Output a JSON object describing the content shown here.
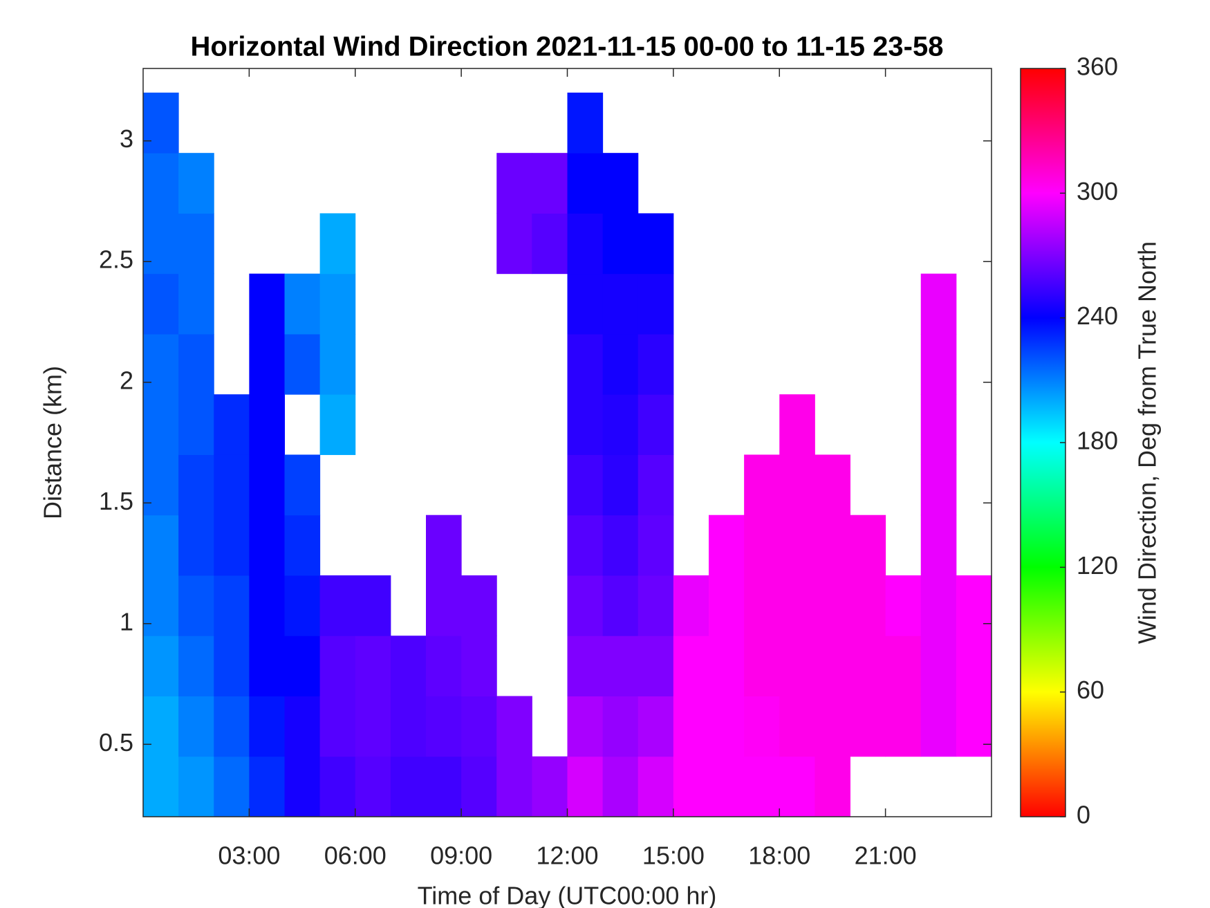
{
  "chart_data": {
    "type": "heatmap",
    "title": "Horizontal Wind Direction 2021-11-15 00-00 to 11-15 23-58",
    "xlabel": "Time of Day (UTC00:00 hr)",
    "ylabel": "Distance (km)",
    "colorbar_label": "Wind Direction, Deg from True North",
    "colormap": "hsv",
    "x": [
      0.5,
      1.5,
      2.5,
      3.5,
      4.5,
      5.5,
      6.5,
      7.5,
      8.5,
      9.5,
      10.5,
      11.5,
      12.5,
      13.5,
      14.5,
      15.5,
      16.5,
      17.5,
      18.5,
      19.5,
      20.5,
      21.5,
      22.5,
      23.5
    ],
    "y": [
      0.325,
      0.575,
      0.825,
      1.075,
      1.325,
      1.575,
      1.825,
      2.075,
      2.325,
      2.575,
      2.825,
      3.075
    ],
    "values": [
      [
        200,
        200,
        205,
        210,
        210,
        215,
        215,
        215,
        220,
        215,
        215,
        220
      ],
      [
        205,
        210,
        215,
        220,
        225,
        225,
        220,
        220,
        215,
        215,
        210,
        null
      ],
      [
        215,
        220,
        225,
        225,
        230,
        230,
        230,
        null,
        null,
        null,
        null,
        null
      ],
      [
        230,
        235,
        240,
        240,
        240,
        240,
        240,
        240,
        240,
        null,
        null,
        null
      ],
      [
        245,
        245,
        240,
        235,
        230,
        225,
        null,
        220,
        210,
        null,
        null,
        null
      ],
      [
        255,
        260,
        260,
        255,
        null,
        null,
        200,
        205,
        205,
        200,
        null,
        null
      ],
      [
        260,
        262,
        262,
        255,
        null,
        null,
        null,
        null,
        null,
        null,
        null,
        null
      ],
      [
        255,
        258,
        258,
        null,
        null,
        null,
        null,
        null,
        null,
        null,
        null,
        null
      ],
      [
        255,
        260,
        262,
        265,
        265,
        null,
        null,
        null,
        null,
        null,
        null,
        null
      ],
      [
        260,
        262,
        265,
        265,
        null,
        null,
        null,
        null,
        null,
        null,
        null,
        null
      ],
      [
        270,
        270,
        null,
        null,
        null,
        null,
        null,
        null,
        null,
        265,
        265,
        null
      ],
      [
        275,
        null,
        null,
        null,
        null,
        null,
        null,
        null,
        null,
        260,
        265,
        null
      ],
      [
        290,
        280,
        270,
        265,
        260,
        255,
        250,
        250,
        245,
        245,
        240,
        235
      ],
      [
        280,
        275,
        270,
        260,
        255,
        250,
        248,
        245,
        245,
        240,
        240,
        null
      ],
      [
        290,
        280,
        270,
        265,
        262,
        260,
        255,
        250,
        245,
        240,
        null,
        null
      ],
      [
        300,
        300,
        300,
        295,
        null,
        null,
        null,
        null,
        null,
        null,
        null,
        null
      ],
      [
        300,
        300,
        300,
        300,
        300,
        null,
        null,
        null,
        null,
        null,
        null,
        null
      ],
      [
        300,
        302,
        305,
        305,
        305,
        305,
        null,
        null,
        null,
        null,
        null,
        null
      ],
      [
        300,
        305,
        305,
        305,
        305,
        305,
        305,
        null,
        null,
        null,
        null,
        null
      ],
      [
        305,
        305,
        305,
        305,
        305,
        305,
        null,
        null,
        null,
        null,
        null,
        null
      ],
      [
        null,
        305,
        305,
        305,
        305,
        null,
        null,
        null,
        null,
        null,
        null,
        null
      ],
      [
        null,
        305,
        305,
        300,
        null,
        null,
        null,
        null,
        null,
        null,
        null,
        null
      ],
      [
        null,
        295,
        295,
        295,
        295,
        295,
        295,
        295,
        295,
        null,
        null,
        null
      ],
      [
        null,
        300,
        300,
        300,
        null,
        null,
        null,
        null,
        null,
        null,
        null,
        null
      ]
    ],
    "xlim": [
      0,
      24
    ],
    "ylim": [
      0.2,
      3.3
    ],
    "xticks": [
      {
        "value": 3,
        "label": "03:00"
      },
      {
        "value": 6,
        "label": "06:00"
      },
      {
        "value": 9,
        "label": "09:00"
      },
      {
        "value": 12,
        "label": "12:00"
      },
      {
        "value": 15,
        "label": "15:00"
      },
      {
        "value": 18,
        "label": "18:00"
      },
      {
        "value": 21,
        "label": "21:00"
      }
    ],
    "yticks": [
      0.5,
      1,
      1.5,
      2,
      2.5,
      3
    ],
    "clim": [
      0,
      360
    ],
    "cticks": [
      0,
      60,
      120,
      180,
      240,
      300,
      360
    ]
  }
}
